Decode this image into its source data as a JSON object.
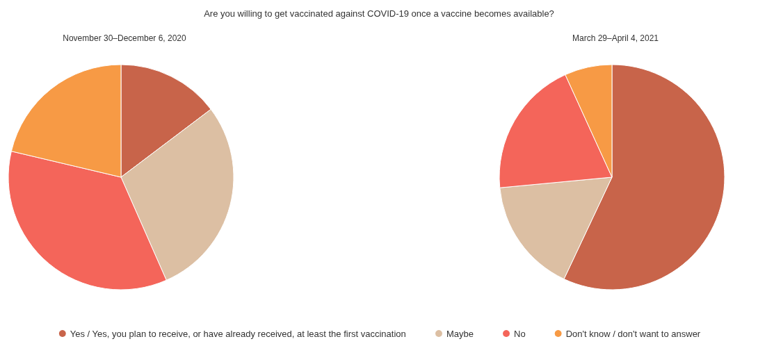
{
  "chart_data": {
    "type": "pie",
    "title": "Are you willing to get vaccinated against COVID-19 once a vaccine becomes available?",
    "categories": [
      "Yes / Yes, you plan to receive, or have already received, at least the first vaccination",
      "Maybe",
      "No",
      "Don't know / don't want to answer"
    ],
    "colors": [
      "#c8644a",
      "#dcbfa3",
      "#f4655a",
      "#f79a45"
    ],
    "legend": "bottom",
    "series": [
      {
        "name": "November 30–December 6, 2020",
        "values": [
          14.7,
          28.7,
          35.3,
          21.3
        ]
      },
      {
        "name": "March 29–April 4, 2021",
        "values": [
          57.0,
          16.5,
          19.7,
          6.8
        ]
      }
    ]
  }
}
